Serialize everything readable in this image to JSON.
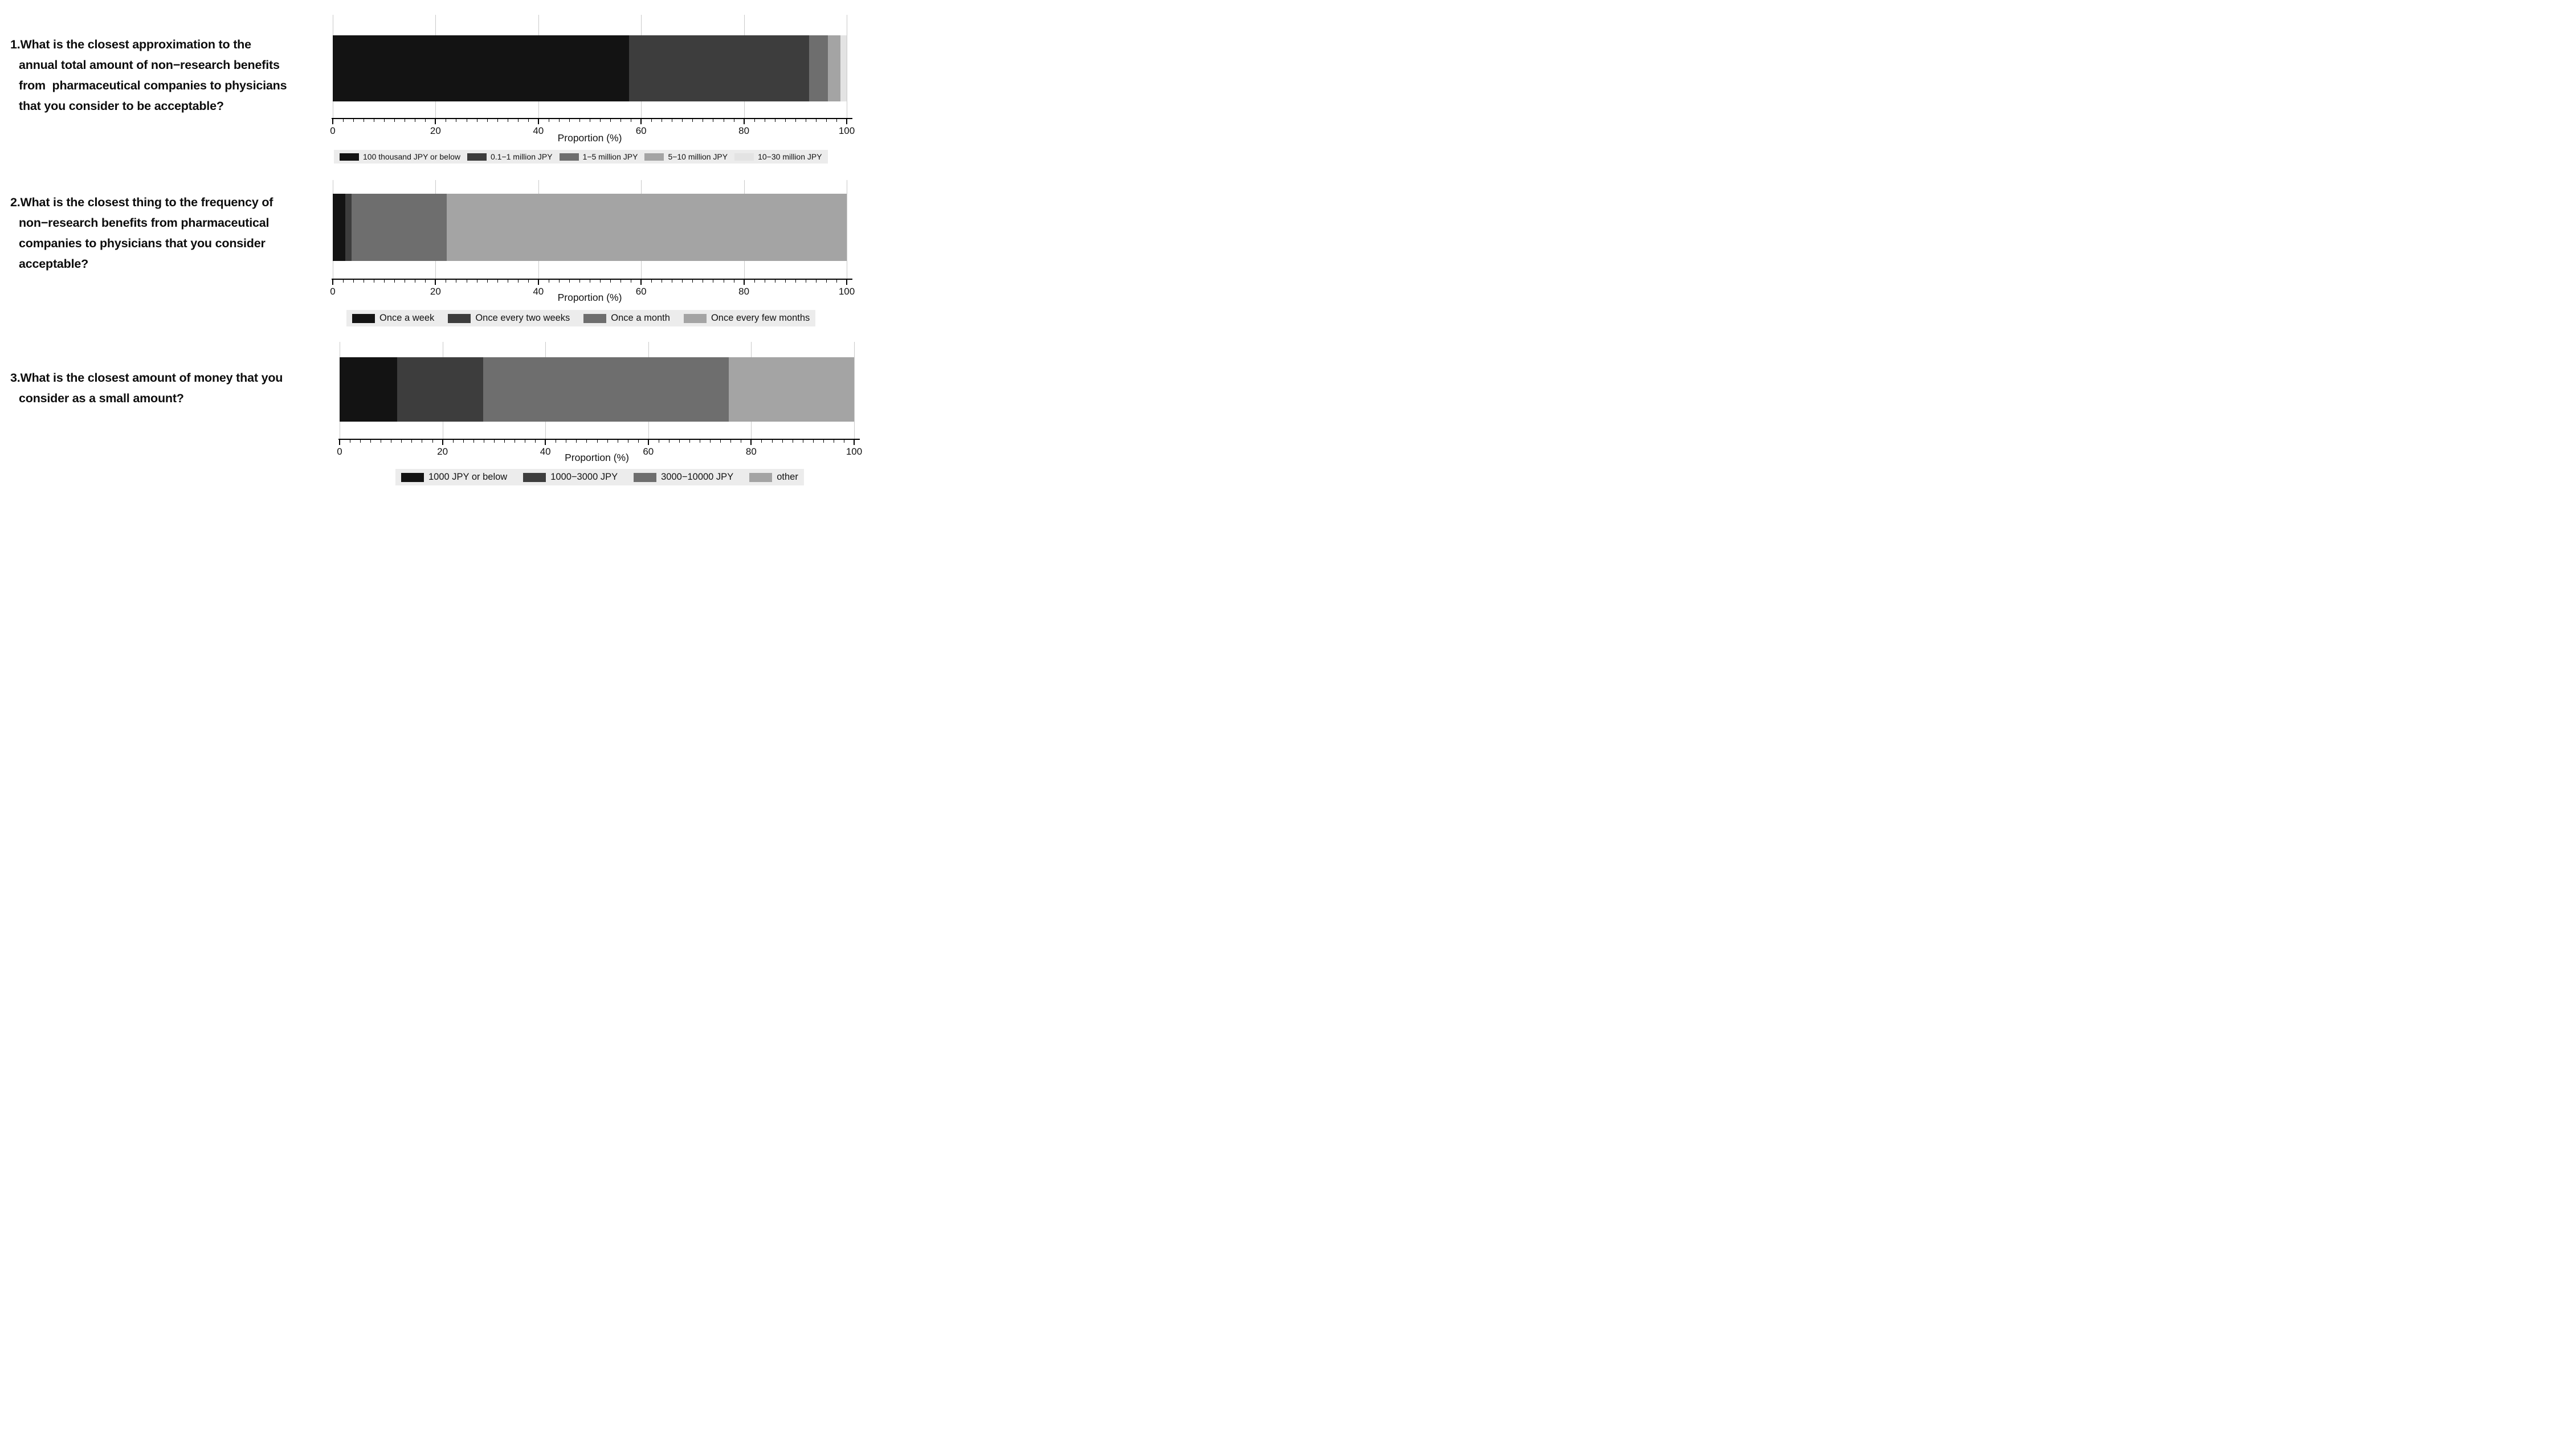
{
  "figure": {
    "background": "#ffffff",
    "axis": {
      "label": "Proportion (%)",
      "major_ticks": [
        0,
        20,
        40,
        60,
        80,
        100
      ],
      "minor_tick_step": 2,
      "xlim": [
        0,
        100
      ]
    },
    "palette": [
      "#131313",
      "#3d3d3d",
      "#6e6e6e",
      "#a4a4a4",
      "#e3e3e3"
    ],
    "legend_bg": "#ececec",
    "gridline_color": "#c9c9c9"
  },
  "chart_data": [
    {
      "type": "bar",
      "stacked": true,
      "orientation": "horizontal",
      "question_lines": [
        "1.What is the closest approximation to the",
        "annual total amount of non−research benefits",
        "from  pharmaceutical companies to physicians",
        "that you consider to be acceptable?"
      ],
      "xlabel": "Proportion (%)",
      "xlim": [
        0,
        100
      ],
      "tick_labels": [
        "0",
        "20",
        "40",
        "60",
        "80",
        "100"
      ],
      "grid": true,
      "legend_position": "bottom",
      "series": [
        {
          "name": "100 thousand JPY or below",
          "value": 57.7
        },
        {
          "name": "0.1−1 million JPY",
          "value": 35.0
        },
        {
          "name": "1−5 million JPY",
          "value": 3.6
        },
        {
          "name": "5−10 million JPY",
          "value": 2.5
        },
        {
          "name": "10−30 million JPY",
          "value": 1.2
        }
      ]
    },
    {
      "type": "bar",
      "stacked": true,
      "orientation": "horizontal",
      "question_lines": [
        "2.What is the closest thing to the frequency of",
        "non−research benefits from pharmaceutical",
        "companies to physicians that you consider",
        "acceptable?"
      ],
      "xlabel": "Proportion (%)",
      "xlim": [
        0,
        100
      ],
      "tick_labels": [
        "0",
        "20",
        "40",
        "60",
        "80",
        "100"
      ],
      "grid": true,
      "legend_position": "bottom",
      "series": [
        {
          "name": "Once a week",
          "value": 2.4
        },
        {
          "name": "Once every two weeks",
          "value": 1.3
        },
        {
          "name": "Once a month",
          "value": 18.5
        },
        {
          "name": "Once every few months",
          "value": 77.8
        }
      ]
    },
    {
      "type": "bar",
      "stacked": true,
      "orientation": "horizontal",
      "question_lines": [
        "3.What is the closest amount of money that you",
        "consider as a small amount?"
      ],
      "xlabel": "Proportion (%)",
      "xlim": [
        0,
        100
      ],
      "tick_labels": [
        "0",
        "20",
        "40",
        "60",
        "80",
        "100"
      ],
      "grid": true,
      "legend_position": "bottom",
      "series": [
        {
          "name": "1000 JPY or below",
          "value": 11.2
        },
        {
          "name": "1000−3000 JPY",
          "value": 16.7
        },
        {
          "name": "3000−10000 JPY",
          "value": 47.7
        },
        {
          "name": "other",
          "value": 24.4
        }
      ]
    }
  ]
}
